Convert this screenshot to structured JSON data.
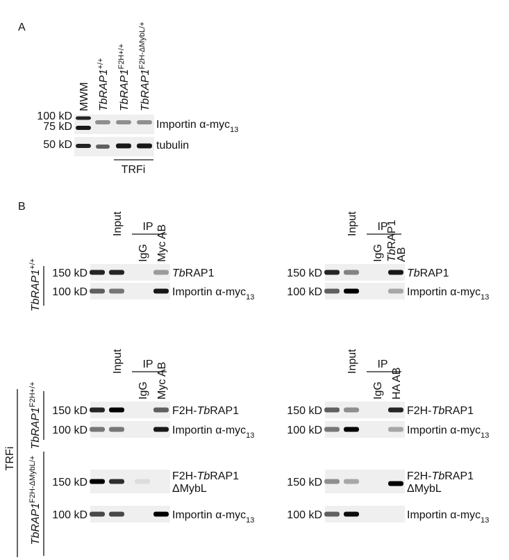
{
  "panel_a": {
    "label": "A",
    "lanes": [
      [
        [
          {
            "text": "MWM"
          }
        ]
      ],
      [
        [
          {
            "text": "TbRAP1",
            "style": "italic"
          },
          {
            "text": "+/+",
            "style": "sup"
          }
        ]
      ],
      [
        [
          {
            "text": "TbRAP1",
            "style": "italic"
          },
          {
            "text": "F2H+/+",
            "style": "sup"
          }
        ]
      ],
      [
        [
          {
            "text": "TbRAP1",
            "style": "italic"
          },
          {
            "text": "F2H-ΔMybL/+",
            "style": "sup"
          }
        ]
      ]
    ],
    "markers": [
      "100 kD",
      "75 kD",
      "50 kD"
    ],
    "bands": [
      [
        [
          {
            "text": "Importin α-myc"
          },
          {
            "text": "13",
            "style": "sub"
          }
        ]
      ],
      [
        [
          {
            "text": "tubulin"
          }
        ]
      ]
    ],
    "group": "TRFi"
  },
  "panel_b": {
    "label": "B",
    "blots": [
      {
        "input": [
          [
            {
              "text": "Input"
            }
          ]
        ],
        "ip": [
          [
            {
              "text": "IP"
            }
          ]
        ],
        "lanes": [
          [
            [
              {
                "text": "IgG"
              }
            ]
          ],
          [
            [
              {
                "text": "Myc AB"
              }
            ]
          ]
        ],
        "markers": [
          "150 kD",
          "100 kD"
        ],
        "bands": [
          [
            [
              {
                "text": "Tb",
                "style": "italic"
              },
              {
                "text": "RAP1"
              }
            ]
          ],
          [
            [
              {
                "text": "Importin α-myc"
              },
              {
                "text": "13",
                "style": "sub"
              }
            ]
          ]
        ]
      },
      {
        "input": [
          [
            {
              "text": "Input"
            }
          ]
        ],
        "ip": [
          [
            {
              "text": "IP"
            }
          ]
        ],
        "lanes": [
          [
            [
              {
                "text": "IgG"
              }
            ]
          ],
          [
            [
              {
                "text": "Tb",
                "style": "italic"
              },
              {
                "text": "RAP1"
              }
            ],
            [
              {
                "text": "AB"
              }
            ]
          ]
        ],
        "markers": [
          "150 kD",
          "100 kD"
        ],
        "bands": [
          [
            [
              {
                "text": "Tb",
                "style": "italic"
              },
              {
                "text": "RAP1"
              }
            ]
          ],
          [
            [
              {
                "text": "Importin α-myc"
              },
              {
                "text": "13",
                "style": "sub"
              }
            ]
          ]
        ]
      },
      {
        "input": [
          [
            {
              "text": "Input"
            }
          ]
        ],
        "ip": [
          [
            {
              "text": "IP"
            }
          ]
        ],
        "lanes": [
          [
            [
              {
                "text": "IgG"
              }
            ]
          ],
          [
            [
              {
                "text": "Myc AB"
              }
            ]
          ]
        ],
        "markers": [
          "150 kD",
          "100 kD"
        ],
        "bands": [
          [
            [
              {
                "text": "F2H-"
              },
              {
                "text": "Tb",
                "style": "italic"
              },
              {
                "text": "RAP1"
              }
            ]
          ],
          [
            [
              {
                "text": "Importin α-myc"
              },
              {
                "text": "13",
                "style": "sub"
              }
            ]
          ]
        ]
      },
      {
        "input": [
          [
            {
              "text": "Input"
            }
          ]
        ],
        "ip": [
          [
            {
              "text": "IP"
            }
          ]
        ],
        "lanes": [
          [
            [
              {
                "text": "IgG"
              }
            ]
          ],
          [
            [
              {
                "text": "HA AB"
              }
            ]
          ]
        ],
        "markers": [
          "150 kD",
          "100 kD"
        ],
        "bands": [
          [
            [
              {
                "text": "F2H-"
              },
              {
                "text": "Tb",
                "style": "italic"
              },
              {
                "text": "RAP1"
              }
            ]
          ],
          [
            [
              {
                "text": "Importin α-myc"
              },
              {
                "text": "13",
                "style": "sub"
              }
            ]
          ]
        ]
      },
      {
        "markers": [
          "150 kD",
          "100 kD"
        ],
        "bands": [
          [
            [
              {
                "text": "F2H-"
              },
              {
                "text": "Tb",
                "style": "italic"
              },
              {
                "text": "RAP1"
              }
            ],
            [
              {
                "text": "ΔMybL"
              }
            ]
          ],
          [
            [
              {
                "text": "Importin α-myc"
              },
              {
                "text": "13",
                "style": "sub"
              }
            ]
          ]
        ]
      },
      {
        "markers": [
          "150 kD",
          "100 kD"
        ],
        "bands": [
          [
            [
              {
                "text": "F2H-"
              },
              {
                "text": "Tb",
                "style": "italic"
              },
              {
                "text": "RAP1"
              }
            ],
            [
              {
                "text": "ΔMybL"
              }
            ]
          ],
          [
            [
              {
                "text": "Importin α-myc"
              },
              {
                "text": "13",
                "style": "sub"
              }
            ]
          ]
        ]
      }
    ],
    "rows": [
      [
        [
          {
            "text": "TbRAP1",
            "style": "italic"
          },
          {
            "text": "+/+",
            "style": "sup"
          }
        ]
      ],
      [
        [
          {
            "text": "TbRAP1",
            "style": "italic"
          },
          {
            "text": "F2H+/+",
            "style": "sup"
          }
        ]
      ],
      [
        [
          {
            "text": "TbRAP1",
            "style": "italic"
          },
          {
            "text": "F2H-ΔMybL/+",
            "style": "sup"
          }
        ]
      ]
    ],
    "group": "TRFi"
  }
}
